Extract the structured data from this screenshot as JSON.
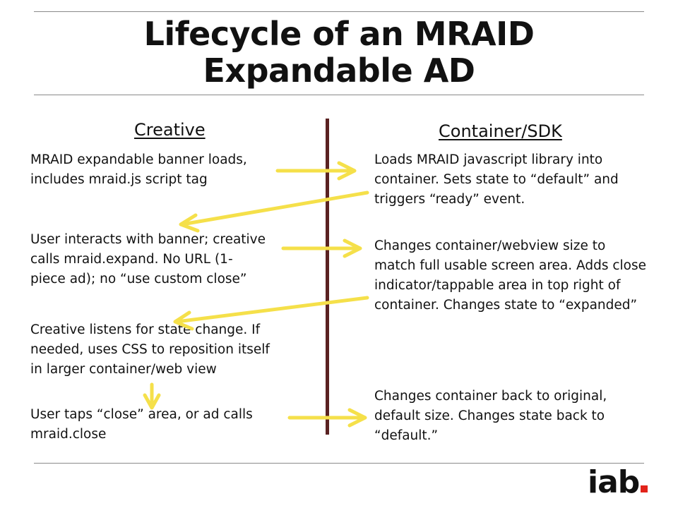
{
  "title": {
    "line1": "Lifecycle of an MRAID",
    "line2": "Expandable AD"
  },
  "columns": {
    "left_heading": "Creative",
    "right_heading": "Container/SDK"
  },
  "creative_steps": [
    {
      "lines": [
        "MRAID expandable banner loads,",
        "includes mraid.js script tag"
      ]
    },
    {
      "lines": [
        "User interacts with banner; creative",
        "calls mraid.expand.  No URL (1-",
        "piece ad); no “use custom close”"
      ]
    },
    {
      "lines": [
        "Creative listens for state change.  If",
        "needed, uses CSS to reposition itself",
        "in larger container/web view"
      ]
    },
    {
      "lines": [
        "User taps “close” area, or ad calls",
        "mraid.close"
      ]
    }
  ],
  "container_steps": [
    {
      "lines": [
        "Loads MRAID javascript library into",
        "container. Sets state to “default” and",
        "triggers “ready” event."
      ]
    },
    {
      "lines": [
        "Changes container/webview size to",
        "match full usable screen area.  Adds close",
        "indicator/tappable area in top right of",
        "container. Changes state to “expanded”"
      ]
    },
    {
      "lines": [
        "Changes container back to original,",
        "default size.  Changes state back to",
        "“default.”"
      ]
    }
  ],
  "logo": {
    "text": "iab",
    "dot_color": "#e2231a"
  },
  "colors": {
    "arrow": "#f5e04a",
    "divider": "#5a2222",
    "rule": "#8a8a8a"
  }
}
